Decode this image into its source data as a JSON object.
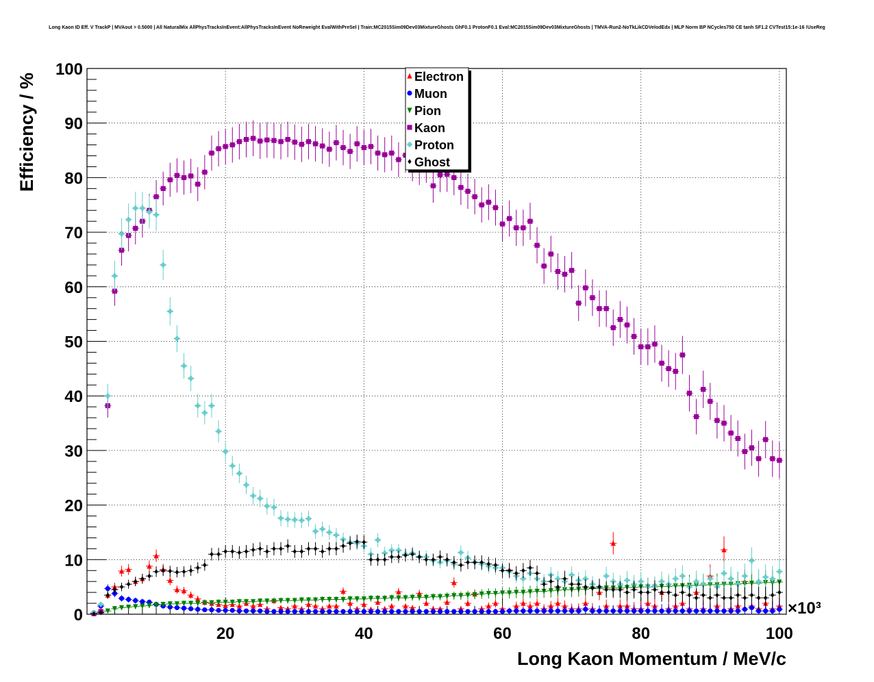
{
  "chart_data": {
    "type": "scatter",
    "title": "Long Kaon ID Eff. V TrackP | MVAout > 0.5000 | All NaturalMix AllPhysTracksInEvent:AllPhysTracksInEvent NoReweight EvalWithPreSel | Train:MC2015Sim09Dev03MixtureGhosts GhF0.1 ProtonF0.1 Eval:MC2015Sim09Dev03MixtureGhosts | TMVA-Run2-NoTkLikCDVelodEdx | MLP Norm BP NCycles750 CE tanh SF1.2 CVTest15:1e-16 !UseReg",
    "xlabel": "Long Kaon Momentum / MeV/c",
    "ylabel": "Efficiency / %",
    "x_multiplier_label": "×10³",
    "xlim": [
      0,
      101
    ],
    "ylim": [
      0,
      100
    ],
    "xticks": [
      20,
      40,
      60,
      80,
      100
    ],
    "yticks": [
      0,
      10,
      20,
      30,
      40,
      50,
      60,
      70,
      80,
      90,
      100
    ],
    "grid": true,
    "legend_position": "top-center",
    "x": [
      1,
      2,
      3,
      4,
      5,
      6,
      7,
      8,
      9,
      10,
      11,
      12,
      13,
      14,
      15,
      16,
      17,
      18,
      19,
      20,
      21,
      22,
      23,
      24,
      25,
      26,
      27,
      28,
      29,
      30,
      31,
      32,
      33,
      34,
      35,
      36,
      37,
      38,
      39,
      40,
      41,
      42,
      43,
      44,
      45,
      46,
      47,
      48,
      49,
      50,
      51,
      52,
      53,
      54,
      55,
      56,
      57,
      58,
      59,
      60,
      61,
      62,
      63,
      64,
      65,
      66,
      67,
      68,
      69,
      70,
      71,
      72,
      73,
      74,
      75,
      76,
      77,
      78,
      79,
      80,
      81,
      82,
      83,
      84,
      85,
      86,
      87,
      88,
      89,
      90,
      91,
      92,
      93,
      94,
      95,
      96,
      97,
      98,
      99,
      100
    ],
    "series": [
      {
        "name": "Electron",
        "color": "#ff0000",
        "marker": "triangle-up",
        "values": [
          0.1,
          0.5,
          3.5,
          5.0,
          7.9,
          8.2,
          6.0,
          6.5,
          8.8,
          10.7,
          8.2,
          6.2,
          4.5,
          4.3,
          3.5,
          2.8,
          2.2,
          2.0,
          1.8,
          1.6,
          1.8,
          1.5,
          2.0,
          1.5,
          1.8,
          1.0,
          2.5,
          1.2,
          1.0,
          1.5,
          1.0,
          1.8,
          1.5,
          1.0,
          1.5,
          1.5,
          4.2,
          2.0,
          1.0,
          1.8,
          0.9,
          2.2,
          1.0,
          1.5,
          4.1,
          1.5,
          1.2,
          3.8,
          2.0,
          1.0,
          1.0,
          2.2,
          5.8,
          1.0,
          2.0,
          3.7,
          1.0,
          1.5,
          2.0,
          1.0,
          8.1,
          1.5,
          2.0,
          1.5,
          2.0,
          1.0,
          1.5,
          2.0,
          1.5,
          1.0,
          1.0,
          2.0,
          1.0,
          4.0,
          1.5,
          13.0,
          1.5,
          1.5,
          1.0,
          1.0,
          2.0,
          1.5,
          4.0,
          1.0,
          1.5,
          2.0,
          1.0,
          4.0,
          1.0,
          7.0,
          1.5,
          11.8,
          1.0,
          1.5,
          6.0,
          1.5,
          1.0,
          2.0,
          1.0,
          1.5
        ]
      },
      {
        "name": "Muon",
        "color": "#0000ff",
        "marker": "circle",
        "values": [
          0.2,
          1.5,
          4.7,
          3.8,
          2.9,
          2.7,
          2.5,
          2.3,
          2.2,
          1.8,
          1.5,
          1.3,
          1.2,
          1.1,
          1.0,
          0.9,
          0.8,
          0.8,
          0.7,
          0.7,
          0.7,
          0.6,
          0.6,
          0.6,
          0.6,
          0.5,
          0.5,
          0.5,
          0.5,
          0.5,
          0.5,
          0.5,
          0.5,
          0.5,
          0.5,
          0.5,
          0.5,
          0.5,
          0.5,
          0.5,
          0.5,
          0.5,
          0.5,
          0.5,
          0.5,
          0.5,
          0.5,
          0.5,
          0.5,
          0.5,
          0.5,
          0.5,
          0.5,
          0.5,
          0.5,
          0.5,
          0.5,
          0.5,
          0.5,
          0.5,
          0.6,
          0.6,
          0.6,
          0.6,
          0.6,
          0.6,
          0.6,
          0.6,
          0.6,
          0.6,
          0.6,
          0.9,
          0.6,
          0.6,
          0.6,
          0.6,
          0.6,
          0.6,
          0.6,
          0.6,
          0.6,
          0.6,
          0.6,
          0.6,
          0.6,
          0.6,
          0.6,
          0.6,
          0.6,
          0.6,
          0.6,
          0.6,
          0.6,
          0.6,
          0.9,
          1.2,
          0.6,
          0.6,
          0.6,
          0.9
        ]
      },
      {
        "name": "Pion",
        "color": "#008000",
        "marker": "triangle-down",
        "values": [
          0.1,
          0.3,
          0.6,
          1.0,
          1.2,
          1.3,
          1.4,
          1.5,
          1.6,
          1.7,
          1.8,
          1.9,
          1.9,
          2.0,
          2.0,
          2.0,
          2.1,
          2.1,
          2.2,
          2.2,
          2.2,
          2.3,
          2.3,
          2.3,
          2.4,
          2.4,
          2.4,
          2.5,
          2.5,
          2.5,
          2.6,
          2.6,
          2.6,
          2.7,
          2.7,
          2.7,
          2.7,
          2.8,
          2.8,
          2.8,
          2.9,
          2.9,
          2.9,
          3.0,
          3.0,
          3.0,
          3.1,
          3.1,
          3.1,
          3.2,
          3.2,
          3.3,
          3.4,
          3.4,
          3.5,
          3.6,
          3.7,
          3.8,
          3.8,
          3.9,
          3.9,
          4.0,
          4.0,
          4.1,
          4.2,
          4.2,
          4.3,
          4.4,
          4.5,
          4.5,
          4.6,
          4.6,
          4.7,
          4.7,
          4.8,
          4.8,
          4.8,
          4.9,
          4.9,
          5.0,
          5.0,
          5.0,
          5.1,
          5.1,
          5.2,
          5.2,
          5.3,
          5.3,
          5.3,
          5.4,
          5.4,
          5.5,
          5.5,
          5.6,
          5.6,
          5.7,
          5.7,
          5.8,
          5.8,
          5.9
        ]
      },
      {
        "name": "Kaon",
        "color": "#990099",
        "marker": "square",
        "values": [
          0.1,
          0.5,
          38.2,
          59.2,
          66.7,
          69.4,
          70.7,
          72.0,
          74.0,
          76.5,
          78.0,
          79.6,
          80.4,
          80.0,
          80.3,
          78.8,
          81.0,
          84.5,
          85.3,
          85.7,
          86.0,
          86.6,
          87.0,
          87.2,
          86.7,
          86.9,
          86.8,
          86.6,
          87.0,
          86.5,
          86.1,
          86.6,
          86.2,
          85.8,
          85.2,
          86.4,
          85.5,
          84.8,
          86.2,
          85.5,
          85.7,
          84.5,
          84.2,
          84.5,
          83.3,
          84.1,
          82.5,
          81.8,
          82.2,
          78.5,
          80.5,
          80.6,
          80.0,
          78.2,
          77.5,
          76.5,
          75.0,
          75.5,
          74.5,
          71.5,
          72.5,
          70.8,
          70.8,
          72.0,
          67.6,
          63.8,
          66.0,
          62.8,
          62.3,
          63.0,
          57.0,
          59.8,
          58.0,
          56.0,
          56.0,
          52.5,
          54.0,
          53.0,
          50.9,
          49.0,
          49.0,
          49.5,
          46.0,
          45.0,
          44.5,
          47.5,
          40.5,
          36.2,
          41.2,
          39.0,
          35.5,
          35.0,
          33.2,
          32.2,
          29.8,
          30.5,
          28.5,
          32.0,
          28.5,
          28.2
        ]
      },
      {
        "name": "Proton",
        "color": "#66cccc",
        "marker": "cross",
        "values": [
          0.3,
          1.8,
          40.0,
          62.0,
          69.7,
          72.3,
          74.4,
          74.4,
          73.7,
          73.2,
          64.0,
          55.5,
          50.5,
          45.5,
          43.2,
          38.2,
          36.9,
          38.2,
          33.5,
          29.8,
          27.2,
          25.8,
          23.7,
          21.7,
          21.2,
          19.8,
          19.6,
          17.6,
          17.4,
          17.3,
          17.2,
          17.5,
          15.2,
          15.6,
          15.0,
          14.5,
          13.7,
          13.2,
          13.0,
          12.5,
          11.0,
          13.6,
          11.2,
          11.7,
          11.7,
          11.0,
          11.2,
          10.5,
          10.5,
          9.8,
          9.5,
          9.8,
          9.2,
          11.3,
          10.3,
          9.5,
          9.2,
          8.8,
          8.5,
          8.5,
          7.8,
          7.0,
          6.5,
          7.5,
          6.5,
          6.0,
          7.2,
          6.5,
          6.0,
          7.2,
          6.2,
          6.5,
          5.5,
          5.0,
          7.0,
          6.0,
          5.5,
          6.2,
          5.5,
          6.0,
          5.0,
          5.2,
          6.0,
          5.5,
          6.5,
          7.0,
          5.0,
          6.0,
          5.5,
          6.5,
          5.0,
          7.5,
          6.5,
          5.5,
          7.0,
          9.8,
          6.0,
          6.8,
          6.5,
          7.8
        ]
      },
      {
        "name": "Ghost",
        "color": "#000000",
        "marker": "diamond",
        "values": [
          0.1,
          0.3,
          3.5,
          4.5,
          5.0,
          5.5,
          6.0,
          6.5,
          7.0,
          7.8,
          8.0,
          7.9,
          7.7,
          7.8,
          8.0,
          8.5,
          9.0,
          11.0,
          11.0,
          11.5,
          11.5,
          11.3,
          11.5,
          11.8,
          12.0,
          11.5,
          12.0,
          12.0,
          12.5,
          11.5,
          11.5,
          12.0,
          12.0,
          11.5,
          12.0,
          12.0,
          12.5,
          13.0,
          13.3,
          13.2,
          10.0,
          10.0,
          10.0,
          10.5,
          10.5,
          10.8,
          11.0,
          10.5,
          10.0,
          10.0,
          10.5,
          10.0,
          9.5,
          9.0,
          9.5,
          9.5,
          9.5,
          9.2,
          9.0,
          8.0,
          8.0,
          7.5,
          8.0,
          8.5,
          7.5,
          5.5,
          6.0,
          5.0,
          6.5,
          5.5,
          5.5,
          5.0,
          4.8,
          5.0,
          4.5,
          4.5,
          4.5,
          4.0,
          4.5,
          4.0,
          4.0,
          4.5,
          4.0,
          4.0,
          3.5,
          4.0,
          3.5,
          3.0,
          3.5,
          3.0,
          3.5,
          3.0,
          3.0,
          3.5,
          3.0,
          3.5,
          3.0,
          3.0,
          3.5,
          4.0
        ]
      }
    ]
  }
}
